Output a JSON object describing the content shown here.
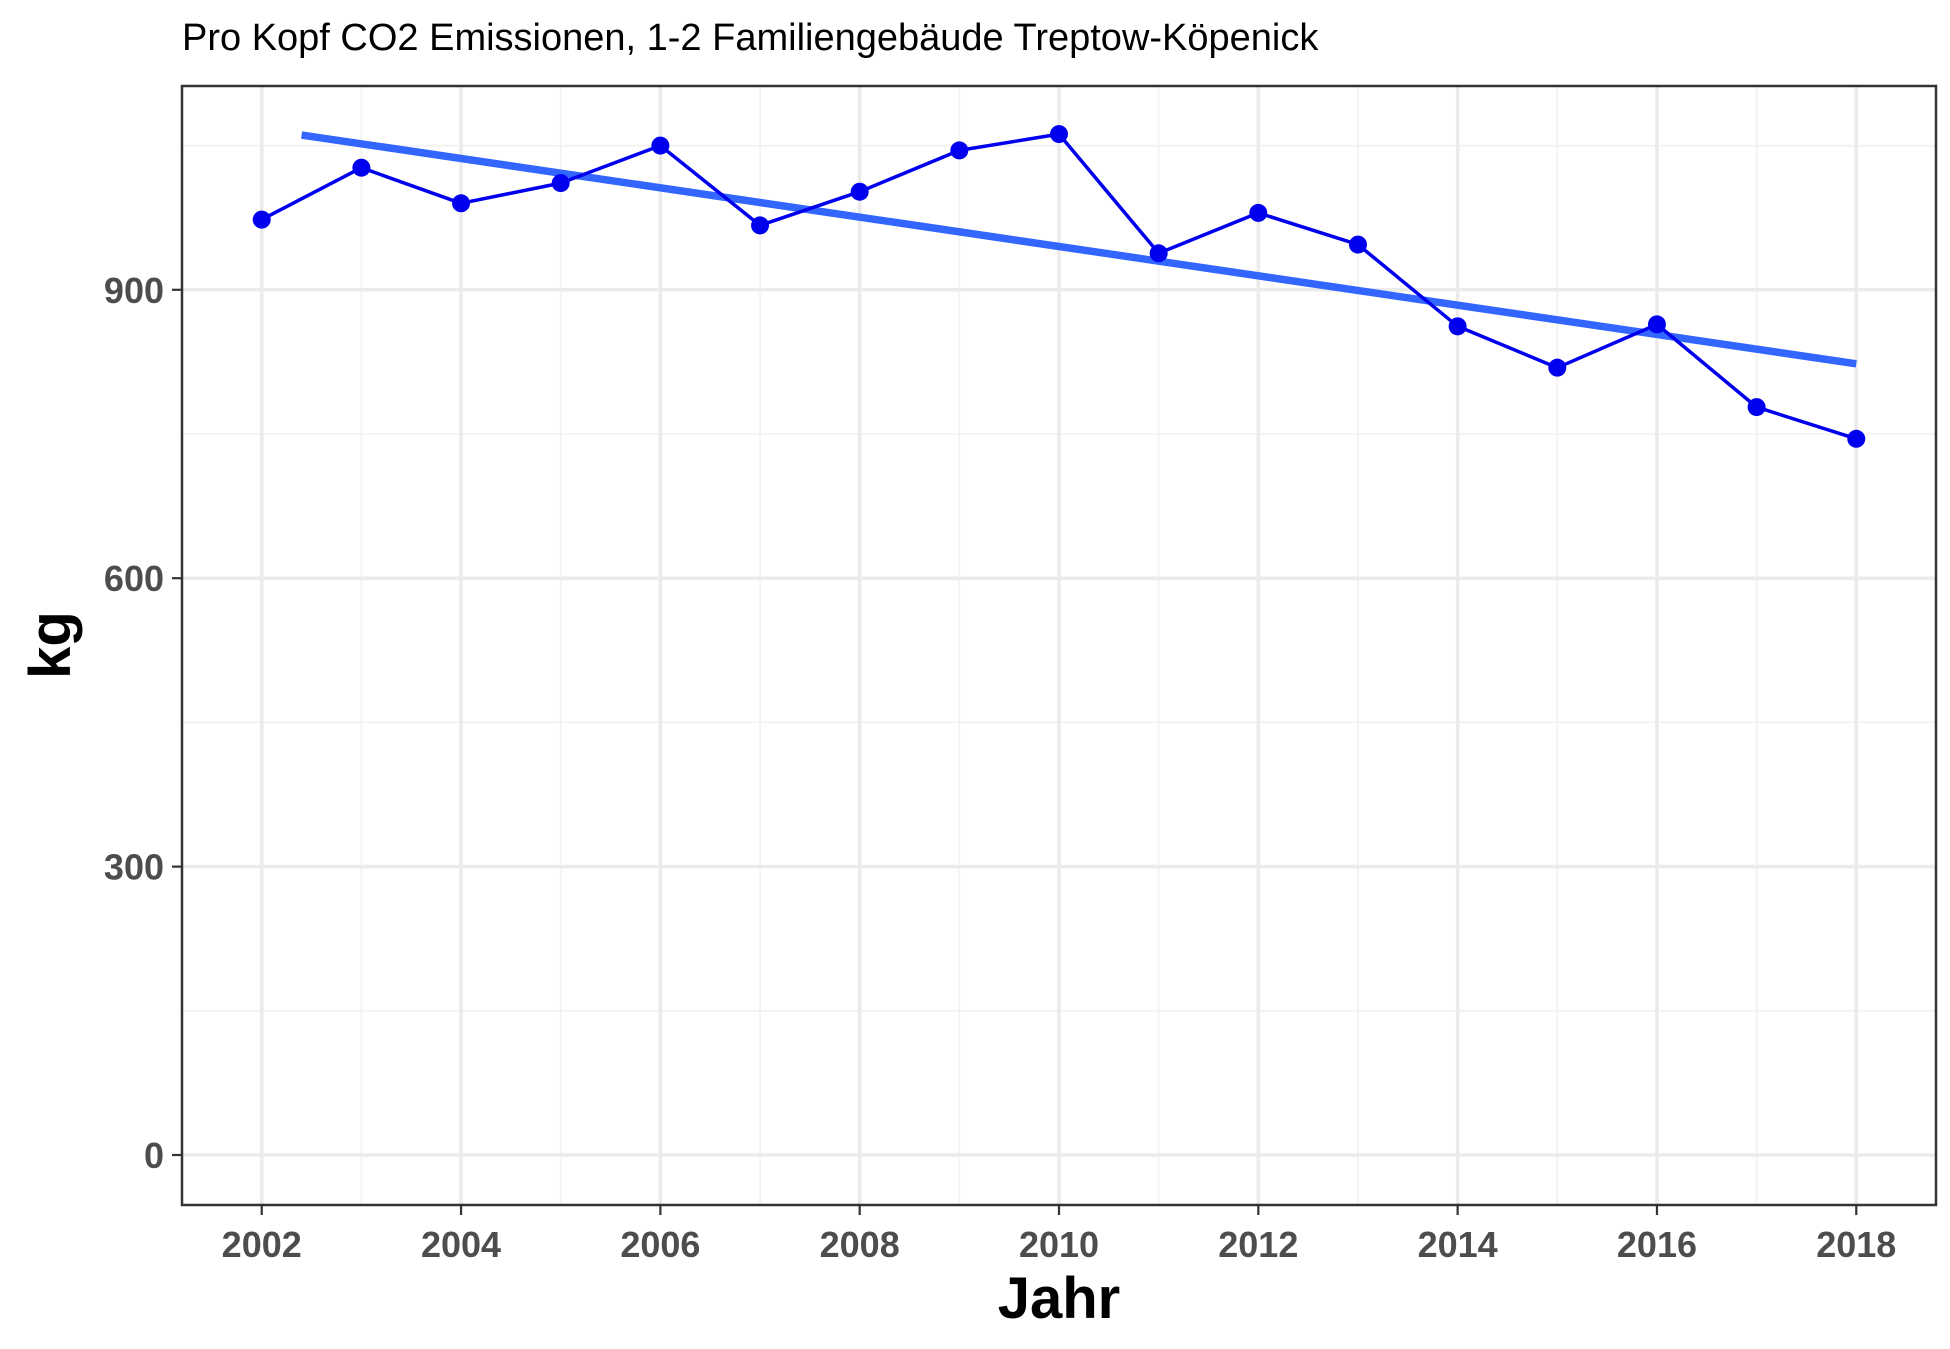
{
  "chart_data": {
    "type": "line",
    "title": "Pro Kopf CO2 Emissionen, 1-2 Familiengebäude Treptow-Köpenick",
    "xlabel": "Jahr",
    "ylabel": "kg",
    "x": [
      2002,
      2003,
      2004,
      2005,
      2006,
      2007,
      2008,
      2009,
      2010,
      2011,
      2012,
      2013,
      2014,
      2015,
      2016,
      2017,
      2018
    ],
    "series": [
      {
        "values": [
          973,
          1027,
          990,
          1011,
          1050,
          967,
          1002,
          1045,
          1062,
          938,
          980,
          947,
          862,
          819,
          864,
          778,
          745
        ],
        "color": "#0000ee"
      }
    ],
    "trend_line": {
      "x": [
        2002.4,
        2018
      ],
      "y": [
        1061,
        823
      ],
      "color": "#3366ff"
    },
    "xlim": [
      2001.2,
      2018.8
    ],
    "ylim": [
      -52,
      1112
    ],
    "x_ticks": [
      "2002",
      "2004",
      "2006",
      "2008",
      "2010",
      "2012",
      "2014",
      "2016",
      "2018"
    ],
    "y_ticks": [
      "0",
      "300",
      "600",
      "900"
    ],
    "grid": true,
    "legend": "none"
  }
}
